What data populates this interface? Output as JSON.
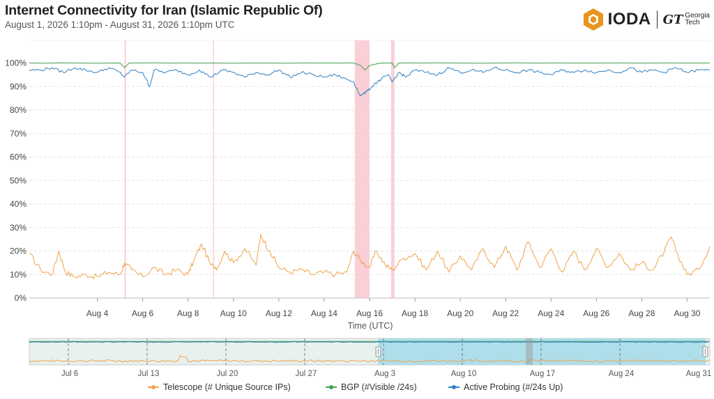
{
  "header": {
    "title": "Internet Connectivity for Iran (Islamic Republic Of)",
    "subtitle": "August 1, 2026 1:10pm - August 31, 2026 1:10pm UTC"
  },
  "logo": {
    "ioda_text": "IODA",
    "gt_mark": "GT",
    "gt_line1": "Georgia",
    "gt_line2": "Tech"
  },
  "colors": {
    "telescope": "#f0a24a",
    "bgp": "#3fa34d",
    "probing": "#2f7fc1",
    "outage": "#f9c7cf",
    "navigator_bg": "#e5efec",
    "navigator_sel": "#a8dbe8"
  },
  "chart_data": {
    "type": "line",
    "title": "",
    "xlabel": "Time (UTC)",
    "ylabel": "",
    "xlim": [
      1.0,
      31.0
    ],
    "ylim": [
      0,
      105
    ],
    "y_ticks": [
      "0%",
      "10%",
      "20%",
      "30%",
      "40%",
      "50%",
      "60%",
      "70%",
      "80%",
      "90%",
      "100%"
    ],
    "x_ticks": [
      {
        "day": 4,
        "label": "Aug 4"
      },
      {
        "day": 6,
        "label": "Aug 6"
      },
      {
        "day": 8,
        "label": "Aug 8"
      },
      {
        "day": 10,
        "label": "Aug 10"
      },
      {
        "day": 12,
        "label": "Aug 12"
      },
      {
        "day": 14,
        "label": "Aug 14"
      },
      {
        "day": 16,
        "label": "Aug 16"
      },
      {
        "day": 18,
        "label": "Aug 18"
      },
      {
        "day": 20,
        "label": "Aug 20"
      },
      {
        "day": 22,
        "label": "Aug 22"
      },
      {
        "day": 24,
        "label": "Aug 24"
      },
      {
        "day": 26,
        "label": "Aug 26"
      },
      {
        "day": 28,
        "label": "Aug 28"
      },
      {
        "day": 30,
        "label": "Aug 30"
      }
    ],
    "grid": true,
    "legend": "bottom",
    "outage_spans": [
      [
        5.2,
        5.26
      ],
      [
        9.1,
        9.14
      ],
      [
        15.35,
        16.0
      ],
      [
        16.95,
        17.1
      ]
    ],
    "series": [
      {
        "name": "Telescope (# Unique Source IPs)",
        "x": [
          1.0,
          1.5,
          2.0,
          2.3,
          2.6,
          3.0,
          3.5,
          4.0,
          4.5,
          5.0,
          5.2,
          5.5,
          6.0,
          6.5,
          7.0,
          7.5,
          8.0,
          8.3,
          8.6,
          9.0,
          9.3,
          9.6,
          10.0,
          10.5,
          11.0,
          11.2,
          11.6,
          12.0,
          12.5,
          13.0,
          13.5,
          14.0,
          14.5,
          15.0,
          15.3,
          15.6,
          16.0,
          16.3,
          16.7,
          17.0,
          17.5,
          18.0,
          18.5,
          19.0,
          19.5,
          20.0,
          20.5,
          21.0,
          21.5,
          22.0,
          22.5,
          23.0,
          23.5,
          24.0,
          24.5,
          25.0,
          25.5,
          26.0,
          26.5,
          27.0,
          27.5,
          28.0,
          28.5,
          29.0,
          29.3,
          29.6,
          30.0,
          30.5,
          31.0
        ],
        "values": [
          19,
          12,
          10,
          20,
          11,
          9,
          10,
          9,
          11,
          10,
          15,
          12,
          9,
          13,
          10,
          12,
          10,
          17,
          23,
          14,
          13,
          20,
          15,
          21,
          14,
          27,
          20,
          13,
          11,
          12,
          10,
          11,
          10,
          11,
          20,
          16,
          13,
          20,
          14,
          12,
          17,
          19,
          12,
          20,
          11,
          18,
          12,
          21,
          13,
          22,
          12,
          24,
          13,
          21,
          11,
          20,
          12,
          21,
          13,
          19,
          12,
          15,
          12,
          20,
          26,
          18,
          10,
          12,
          22
        ]
      },
      {
        "name": "BGP (#Visible /24s)",
        "x": [
          1.0,
          5.0,
          5.2,
          5.4,
          9.0,
          14.0,
          15.3,
          15.6,
          15.8,
          16.0,
          16.5,
          17.0,
          17.1,
          17.3,
          20.0,
          25.0,
          31.0
        ],
        "values": [
          100,
          100,
          98,
          100,
          100,
          100,
          100,
          99,
          97,
          99,
          100,
          100,
          98,
          100,
          100,
          100,
          100
        ]
      },
      {
        "name": "Active Probing (#/24s Up)",
        "x": [
          1.0,
          1.5,
          2.0,
          2.5,
          3.0,
          3.5,
          4.0,
          4.5,
          5.0,
          5.2,
          5.5,
          6.0,
          6.3,
          6.5,
          7.0,
          7.5,
          8.0,
          8.5,
          9.0,
          9.5,
          10.0,
          10.5,
          11.0,
          11.5,
          12.0,
          12.5,
          13.0,
          13.5,
          14.0,
          14.5,
          15.0,
          15.3,
          15.6,
          15.9,
          16.2,
          16.5,
          16.8,
          17.0,
          17.3,
          17.6,
          18.0,
          18.5,
          19.0,
          19.5,
          20.0,
          20.5,
          21.0,
          21.5,
          22.0,
          22.5,
          23.0,
          23.5,
          24.0,
          24.5,
          25.0,
          25.5,
          26.0,
          26.5,
          27.0,
          27.5,
          28.0,
          28.5,
          29.0,
          29.5,
          30.0,
          30.5,
          31.0
        ],
        "values": [
          97,
          97,
          98,
          96,
          98,
          97,
          96,
          98,
          96,
          94,
          97,
          96,
          90,
          97,
          96,
          97,
          95,
          97,
          94,
          97,
          96,
          94,
          96,
          95,
          97,
          94,
          96,
          95,
          94,
          95,
          93,
          92,
          86,
          88,
          91,
          93,
          95,
          92,
          96,
          94,
          97,
          96,
          95,
          98,
          96,
          97,
          96,
          98,
          97,
          96,
          97,
          96,
          95,
          97,
          96,
          97,
          96,
          97,
          96,
          98,
          96,
          97,
          96,
          98,
          96,
          97,
          97
        ]
      }
    ]
  },
  "navigator": {
    "x_ticks": [
      "Jul 6",
      "Jul 13",
      "Jul 20",
      "Jul 27",
      "Aug 3",
      "Aug 10",
      "Aug 17",
      "Aug 24",
      "Aug 31"
    ]
  }
}
